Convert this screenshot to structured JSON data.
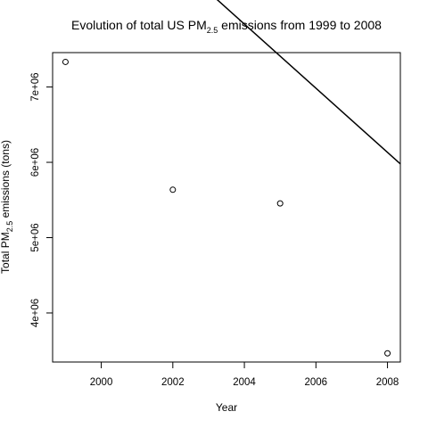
{
  "chart_data": {
    "type": "scatter",
    "title": {
      "before": "Evolution of total US PM",
      "subscript": "2.5",
      "after": " emissions from 1999 to 2008"
    },
    "xlabel": "Year",
    "ylabel": {
      "before": "Total PM",
      "subscript": "2.5",
      "after": " emissions (tons)"
    },
    "xlim": [
      1998.64,
      2008.36
    ],
    "ylim": [
      3348540,
      7456640
    ],
    "x_ticks": [
      {
        "value": 2000,
        "label": "2000"
      },
      {
        "value": 2002,
        "label": "2002"
      },
      {
        "value": 2004,
        "label": "2004"
      },
      {
        "value": 2006,
        "label": "2006"
      },
      {
        "value": 2008,
        "label": "2008"
      }
    ],
    "y_ticks": [
      {
        "value": 4000000,
        "label": "4e+06"
      },
      {
        "value": 5000000,
        "label": "5e+06"
      },
      {
        "value": 6000000,
        "label": "6e+06"
      },
      {
        "value": 7000000,
        "label": "7e+06"
      }
    ],
    "points": [
      {
        "x": 1999,
        "y": 7332967
      },
      {
        "x": 2002,
        "y": 5635780
      },
      {
        "x": 2005,
        "y": 5454703
      },
      {
        "x": 2008,
        "y": 3464206
      }
    ],
    "fit_line": {
      "intercept": 861540000,
      "slope": -426000
    },
    "grid": false,
    "legend": "none",
    "colors": {
      "points": "#000000",
      "line": "#000000",
      "background": "#ffffff"
    }
  }
}
